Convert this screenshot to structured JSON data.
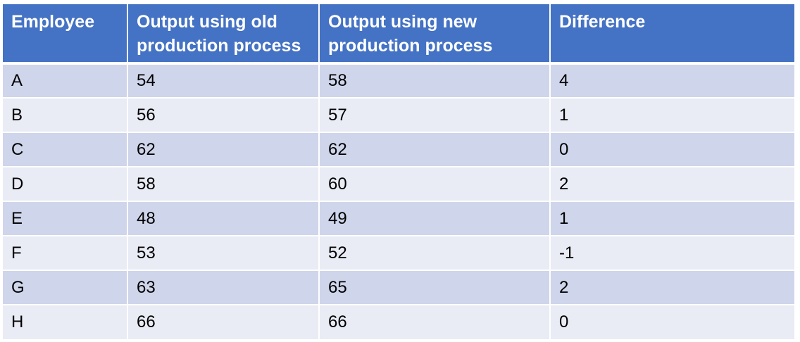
{
  "table": {
    "headers": [
      "Employee",
      "Output using old production process",
      "Output using new production process",
      "Difference"
    ],
    "rows": [
      [
        "A",
        "54",
        "58",
        "4"
      ],
      [
        "B",
        "56",
        "57",
        "1"
      ],
      [
        "C",
        "62",
        "62",
        "0"
      ],
      [
        "D",
        "58",
        "60",
        "2"
      ],
      [
        "E",
        "48",
        "49",
        "1"
      ],
      [
        "F",
        "53",
        "52",
        "-1"
      ],
      [
        "G",
        "63",
        "65",
        "2"
      ],
      [
        "H",
        "66",
        "66",
        "0"
      ]
    ]
  },
  "colors": {
    "header_bg": "#4472c4",
    "row_odd_bg": "#cfd5ea",
    "row_even_bg": "#e9ebf5"
  }
}
